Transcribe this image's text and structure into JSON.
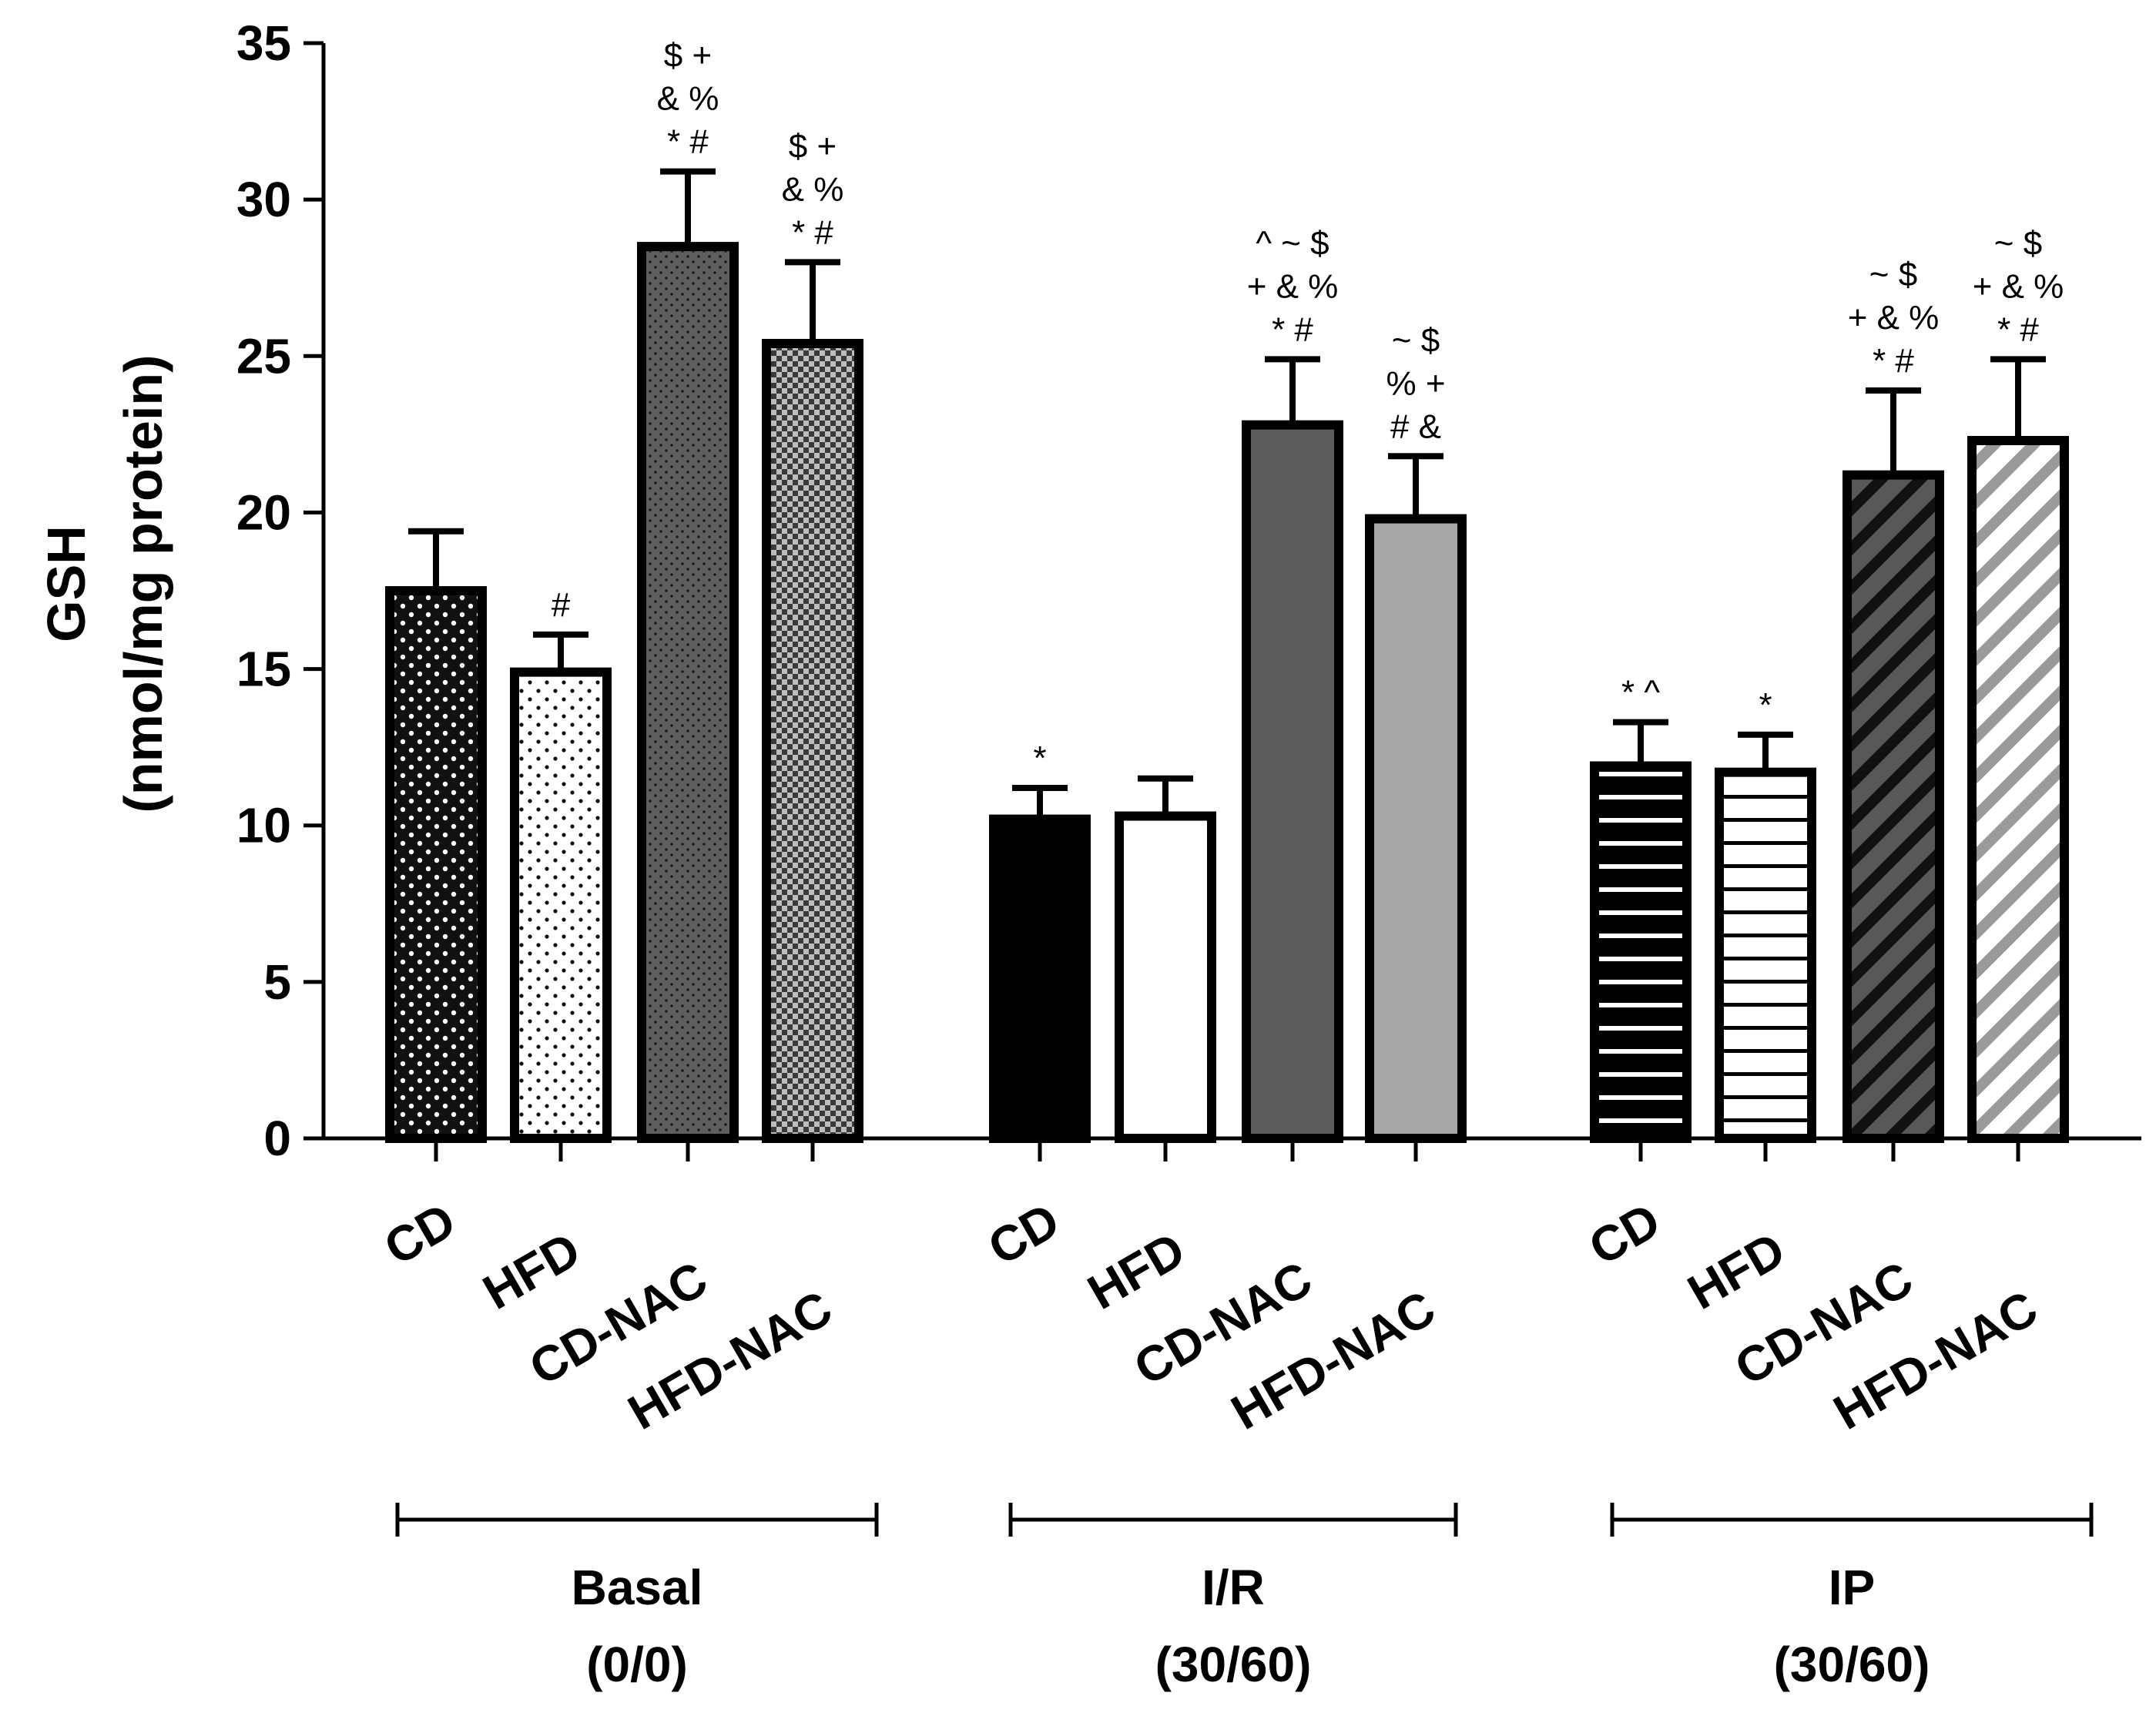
{
  "chart_data": {
    "type": "bar",
    "ylabel_line1": "GSH",
    "ylabel_line2": "(nmol/mg protein)",
    "ylim": [
      0,
      35
    ],
    "yticks": [
      0,
      5,
      10,
      15,
      20,
      25,
      30,
      35
    ],
    "groups": [
      {
        "label": "Basal",
        "sublabel": "(0/0)",
        "bars": [
          {
            "category": "CD",
            "value": 17.5,
            "error": 1.9,
            "pattern": "dots-dark",
            "annotations": []
          },
          {
            "category": "HFD",
            "value": 14.9,
            "error": 1.2,
            "pattern": "dots-light",
            "annotations": [
              "#"
            ]
          },
          {
            "category": "CD-NAC",
            "value": 28.5,
            "error": 2.4,
            "pattern": "dots-gray",
            "annotations": [
              "$ +",
              "& %",
              "* #"
            ]
          },
          {
            "category": "HFD-NAC",
            "value": 25.4,
            "error": 2.6,
            "pattern": "checker",
            "annotations": [
              "$ +",
              "& %",
              "* #"
            ]
          }
        ]
      },
      {
        "label": "I/R",
        "sublabel": "(30/60)",
        "bars": [
          {
            "category": "CD",
            "value": 10.2,
            "error": 1.0,
            "pattern": "solid-black",
            "annotations": [
              "*"
            ]
          },
          {
            "category": "HFD",
            "value": 10.3,
            "error": 1.2,
            "pattern": "solid-white",
            "annotations": []
          },
          {
            "category": "CD-NAC",
            "value": 22.8,
            "error": 2.1,
            "pattern": "solid-dark-gray",
            "annotations": [
              "^ ~ $",
              "+ & %",
              "* #"
            ]
          },
          {
            "category": "HFD-NAC",
            "value": 19.8,
            "error": 2.0,
            "pattern": "solid-light-gray",
            "annotations": [
              "~ $",
              "% +",
              "# &"
            ]
          }
        ]
      },
      {
        "label": "IP",
        "sublabel": "(30/60)",
        "bars": [
          {
            "category": "CD",
            "value": 11.9,
            "error": 1.4,
            "pattern": "hlines-dark",
            "annotations": [
              "* ^"
            ]
          },
          {
            "category": "HFD",
            "value": 11.7,
            "error": 1.2,
            "pattern": "hlines-light",
            "annotations": [
              "*"
            ]
          },
          {
            "category": "CD-NAC",
            "value": 21.2,
            "error": 2.7,
            "pattern": "diag-dark",
            "annotations": [
              "~ $",
              "+ & %",
              "* #"
            ]
          },
          {
            "category": "HFD-NAC",
            "value": 22.3,
            "error": 2.6,
            "pattern": "diag-light",
            "annotations": [
              "~ $",
              "+ & %",
              "* #"
            ]
          }
        ]
      }
    ]
  }
}
